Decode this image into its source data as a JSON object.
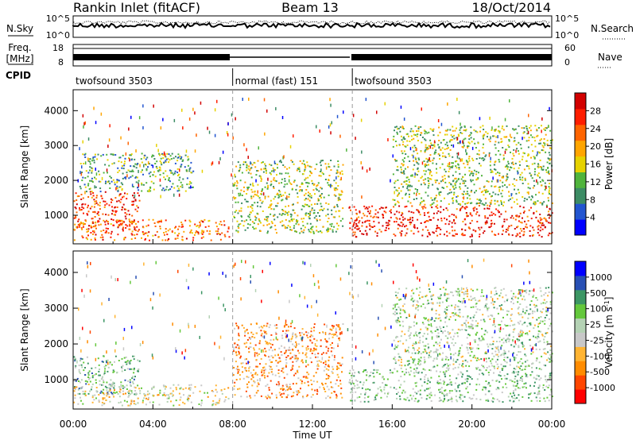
{
  "header": {
    "title": "Rankin Inlet (fitACF)",
    "beam": "Beam 13",
    "date": "18/Oct/2014"
  },
  "labels": {
    "nsky": "N.Sky",
    "nsearch": "N.Search",
    "freq_line1": "Freq.",
    "freq_line2": "[MHz]",
    "nave": "Nave",
    "cpid": "CPID"
  },
  "noise_axis": {
    "left_ticks": [
      "10^5",
      "10^0"
    ],
    "right_ticks": [
      "10^5",
      "10^0"
    ]
  },
  "freq_axis": {
    "left_ticks": [
      "18",
      "8"
    ],
    "right_ticks": [
      "60",
      "0"
    ]
  },
  "cpid_segments": [
    {
      "label": "twofsound 3503",
      "start_hour": 0,
      "end_hour": 8
    },
    {
      "label": "normal (fast) 151",
      "start_hour": 8,
      "end_hour": 14
    },
    {
      "label": "twofsound 3503",
      "start_hour": 14,
      "end_hour": 24
    }
  ],
  "colors": {
    "power": [
      "#0000ff",
      "#2255d0",
      "#3c8c64",
      "#50b43c",
      "#e6d200",
      "#ffa500",
      "#ff6400",
      "#ff1e00",
      "#d20000"
    ],
    "velocity": [
      "#ff0000",
      "#ff4600",
      "#ff8c00",
      "#ffb432",
      "#c8c8c8",
      "#b4d2b4",
      "#64c83c",
      "#3c9664",
      "#2850b4",
      "#0000ff"
    ]
  },
  "chart_data": [
    {
      "type": "heatmap",
      "quantity": "Power",
      "ylabel": "Slant Range [km]",
      "colorbar_label": "Power [dB]",
      "colorbar_ticks": [
        "28",
        "24",
        "20",
        "16",
        "12",
        "8",
        "4"
      ],
      "x_ticks": [
        "00:00",
        "04:00",
        "08:00",
        "12:00",
        "16:00",
        "20:00",
        "00:00"
      ],
      "y_ticks": [
        "4000",
        "3000",
        "2000",
        "1000"
      ],
      "xlim_hours": [
        0,
        24
      ],
      "ylim_km": [
        180,
        4600
      ],
      "regions": [
        {
          "t0": 0.0,
          "t1": 3.3,
          "r0": 600,
          "r1": 1700,
          "level": 0.82
        },
        {
          "t0": 0.0,
          "t1": 7.8,
          "r0": 300,
          "r1": 900,
          "level": 0.72
        },
        {
          "t0": 0.3,
          "t1": 6.0,
          "r0": 1700,
          "r1": 2800,
          "level": 0.35
        },
        {
          "t0": 8.0,
          "t1": 13.5,
          "r0": 500,
          "r1": 2600,
          "level": 0.45
        },
        {
          "t0": 13.8,
          "t1": 24.0,
          "r0": 400,
          "r1": 1300,
          "level": 0.85
        },
        {
          "t0": 16.0,
          "t1": 24.0,
          "r0": 1300,
          "r1": 3600,
          "level": 0.42
        }
      ]
    },
    {
      "type": "heatmap",
      "quantity": "Velocity",
      "ylabel": "Slant Range [km]",
      "colorbar_label": "Velocity [m s^-1]",
      "colorbar_ticks": [
        "1000",
        "500",
        "100",
        "25",
        "-25",
        "-100",
        "-500",
        "-1000"
      ],
      "x_ticks": [
        "00:00",
        "04:00",
        "08:00",
        "12:00",
        "16:00",
        "20:00",
        "00:00"
      ],
      "xlabel": "Time UT",
      "y_ticks": [
        "4000",
        "3000",
        "2000",
        "1000"
      ],
      "xlim_hours": [
        0,
        24
      ],
      "ylim_km": [
        180,
        4600
      ],
      "regions": [
        {
          "t0": 0.0,
          "t1": 3.3,
          "r0": 600,
          "r1": 1700,
          "level": 0.65
        },
        {
          "t0": 0.0,
          "t1": 7.8,
          "r0": 300,
          "r1": 900,
          "level": 0.45
        },
        {
          "t0": 8.0,
          "t1": 13.5,
          "r0": 500,
          "r1": 2600,
          "level": 0.3
        },
        {
          "t0": 13.8,
          "t1": 24.0,
          "r0": 400,
          "r1": 1300,
          "level": 0.6
        },
        {
          "t0": 16.0,
          "t1": 24.0,
          "r0": 1300,
          "r1": 3600,
          "level": 0.55
        }
      ]
    }
  ]
}
